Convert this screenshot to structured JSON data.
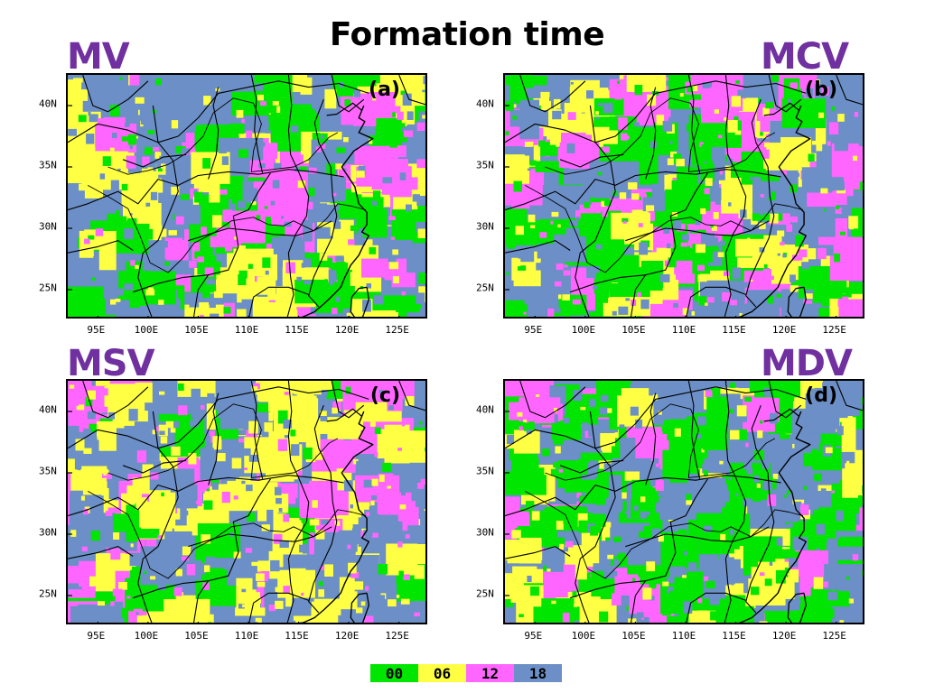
{
  "title": "Formation time",
  "colors": {
    "label": "#7030a0",
    "h00": "#00e600",
    "h06": "#ffff44",
    "h12": "#ff66ff",
    "h18": "#6b8fc6"
  },
  "legend": [
    {
      "label": "00",
      "color": "#00e600"
    },
    {
      "label": "06",
      "color": "#ffff44"
    },
    {
      "label": "12",
      "color": "#ff66ff"
    },
    {
      "label": "18",
      "color": "#6b8fc6"
    }
  ],
  "axes": {
    "xticks": [
      "95E",
      "100E",
      "105E",
      "110E",
      "115E",
      "120E",
      "125E"
    ],
    "yticks": [
      "40N",
      "35N",
      "30N",
      "25N"
    ],
    "lon_range": [
      92,
      128
    ],
    "lat_range": [
      22.5,
      42.5
    ]
  },
  "panels": [
    {
      "id": "a",
      "label": "MV",
      "tag": "(a)",
      "weights": [
        0.18,
        0.28,
        0.18,
        0.36
      ]
    },
    {
      "id": "b",
      "label": "MCV",
      "tag": "(b)",
      "weights": [
        0.24,
        0.24,
        0.26,
        0.26
      ]
    },
    {
      "id": "c",
      "label": "MSV",
      "tag": "(c)",
      "weights": [
        0.12,
        0.34,
        0.22,
        0.32
      ]
    },
    {
      "id": "d",
      "label": "MDV",
      "tag": "(d)",
      "weights": [
        0.36,
        0.22,
        0.1,
        0.32
      ]
    }
  ]
}
